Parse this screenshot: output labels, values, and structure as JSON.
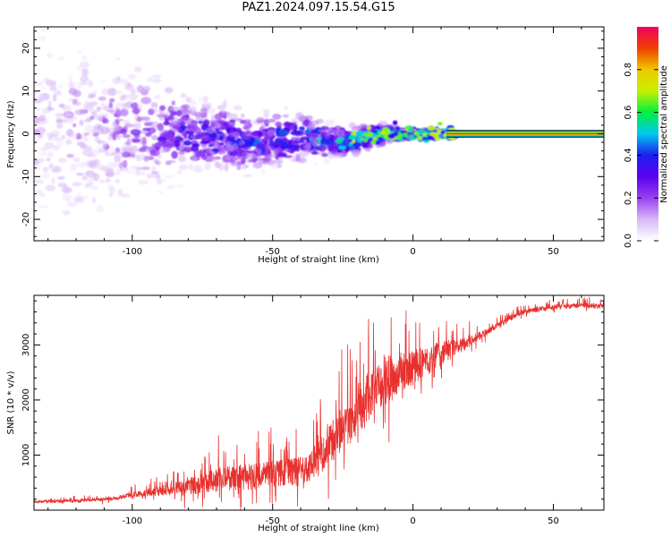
{
  "title": "PAZ1.2024.097.15.54.G15",
  "colors": {
    "snr_line": "#e8312e",
    "colormap": [
      "#ffffff",
      "#d8b8f8",
      "#9a40f0",
      "#5a00f0",
      "#1e1ef0",
      "#00c8f0",
      "#00f040",
      "#c8f000",
      "#f0c800",
      "#f04000",
      "#f00060"
    ]
  },
  "chart_data": [
    {
      "type": "heatmap",
      "xlabel": "Height of straight line (km)",
      "ylabel": "Frequency (Hz)",
      "xlim": [
        -135,
        68
      ],
      "ylim": [
        -25,
        25
      ],
      "x_ticks": [
        -100,
        -50,
        0,
        50
      ],
      "y_ticks": [
        -20,
        -10,
        0,
        10,
        20
      ],
      "grid": false,
      "colorbar": {
        "label": "Normalized spectral amplitude",
        "range": [
          0,
          1
        ],
        "ticks": [
          0.0,
          0.2,
          0.4,
          0.6,
          0.8
        ]
      },
      "description_series": [
        {
          "x": -130,
          "center": 0,
          "spread": 24,
          "intensity": 0.12
        },
        {
          "x": -100,
          "center": 1,
          "spread": 14,
          "intensity": 0.2
        },
        {
          "x": -80,
          "center": 0,
          "spread": 8,
          "intensity": 0.3
        },
        {
          "x": -60,
          "center": -2,
          "spread": 6,
          "intensity": 0.35
        },
        {
          "x": -40,
          "center": -1,
          "spread": 5,
          "intensity": 0.4
        },
        {
          "x": -25,
          "center": -2,
          "spread": 3,
          "intensity": 0.45
        },
        {
          "x": -10,
          "center": 0,
          "spread": 1.5,
          "intensity": 0.55
        },
        {
          "x": 0,
          "center": 0,
          "spread": 1,
          "intensity": 0.6
        },
        {
          "x": 12,
          "center": 0,
          "spread": 0.8,
          "intensity": 0.9
        },
        {
          "x": 68,
          "center": 0,
          "spread": 0.8,
          "intensity": 0.95
        }
      ]
    },
    {
      "type": "line",
      "xlabel": "Height of straight line (km)",
      "ylabel": "SNR (10 * v/v)",
      "xlim": [
        -135,
        68
      ],
      "ylim": [
        0,
        3900
      ],
      "x_ticks": [
        -100,
        -50,
        0,
        50
      ],
      "y_ticks": [
        1000,
        2000,
        3000
      ],
      "grid": false,
      "series": [
        {
          "x": [
            -135,
            -120,
            -105,
            -100,
            -90,
            -80,
            -70,
            -60,
            -50,
            -40,
            -35,
            -30,
            -25,
            -20,
            -15,
            -10,
            -5,
            0,
            5,
            10,
            15,
            20,
            25,
            30,
            35,
            40,
            45,
            50,
            55,
            60,
            68
          ],
          "values": [
            150,
            170,
            220,
            280,
            350,
            420,
            550,
            600,
            650,
            700,
            900,
            1150,
            1500,
            1800,
            2100,
            2300,
            2500,
            2600,
            2700,
            2850,
            2950,
            3050,
            3200,
            3350,
            3500,
            3600,
            3650,
            3680,
            3700,
            3720,
            3700
          ],
          "noise_amplitude": [
            40,
            60,
            80,
            100,
            200,
            350,
            500,
            550,
            550,
            600,
            700,
            800,
            900,
            950,
            1000,
            900,
            800,
            700,
            600,
            500,
            350,
            250,
            150,
            120,
            110,
            100,
            100,
            100,
            100,
            100,
            100
          ]
        }
      ]
    }
  ]
}
